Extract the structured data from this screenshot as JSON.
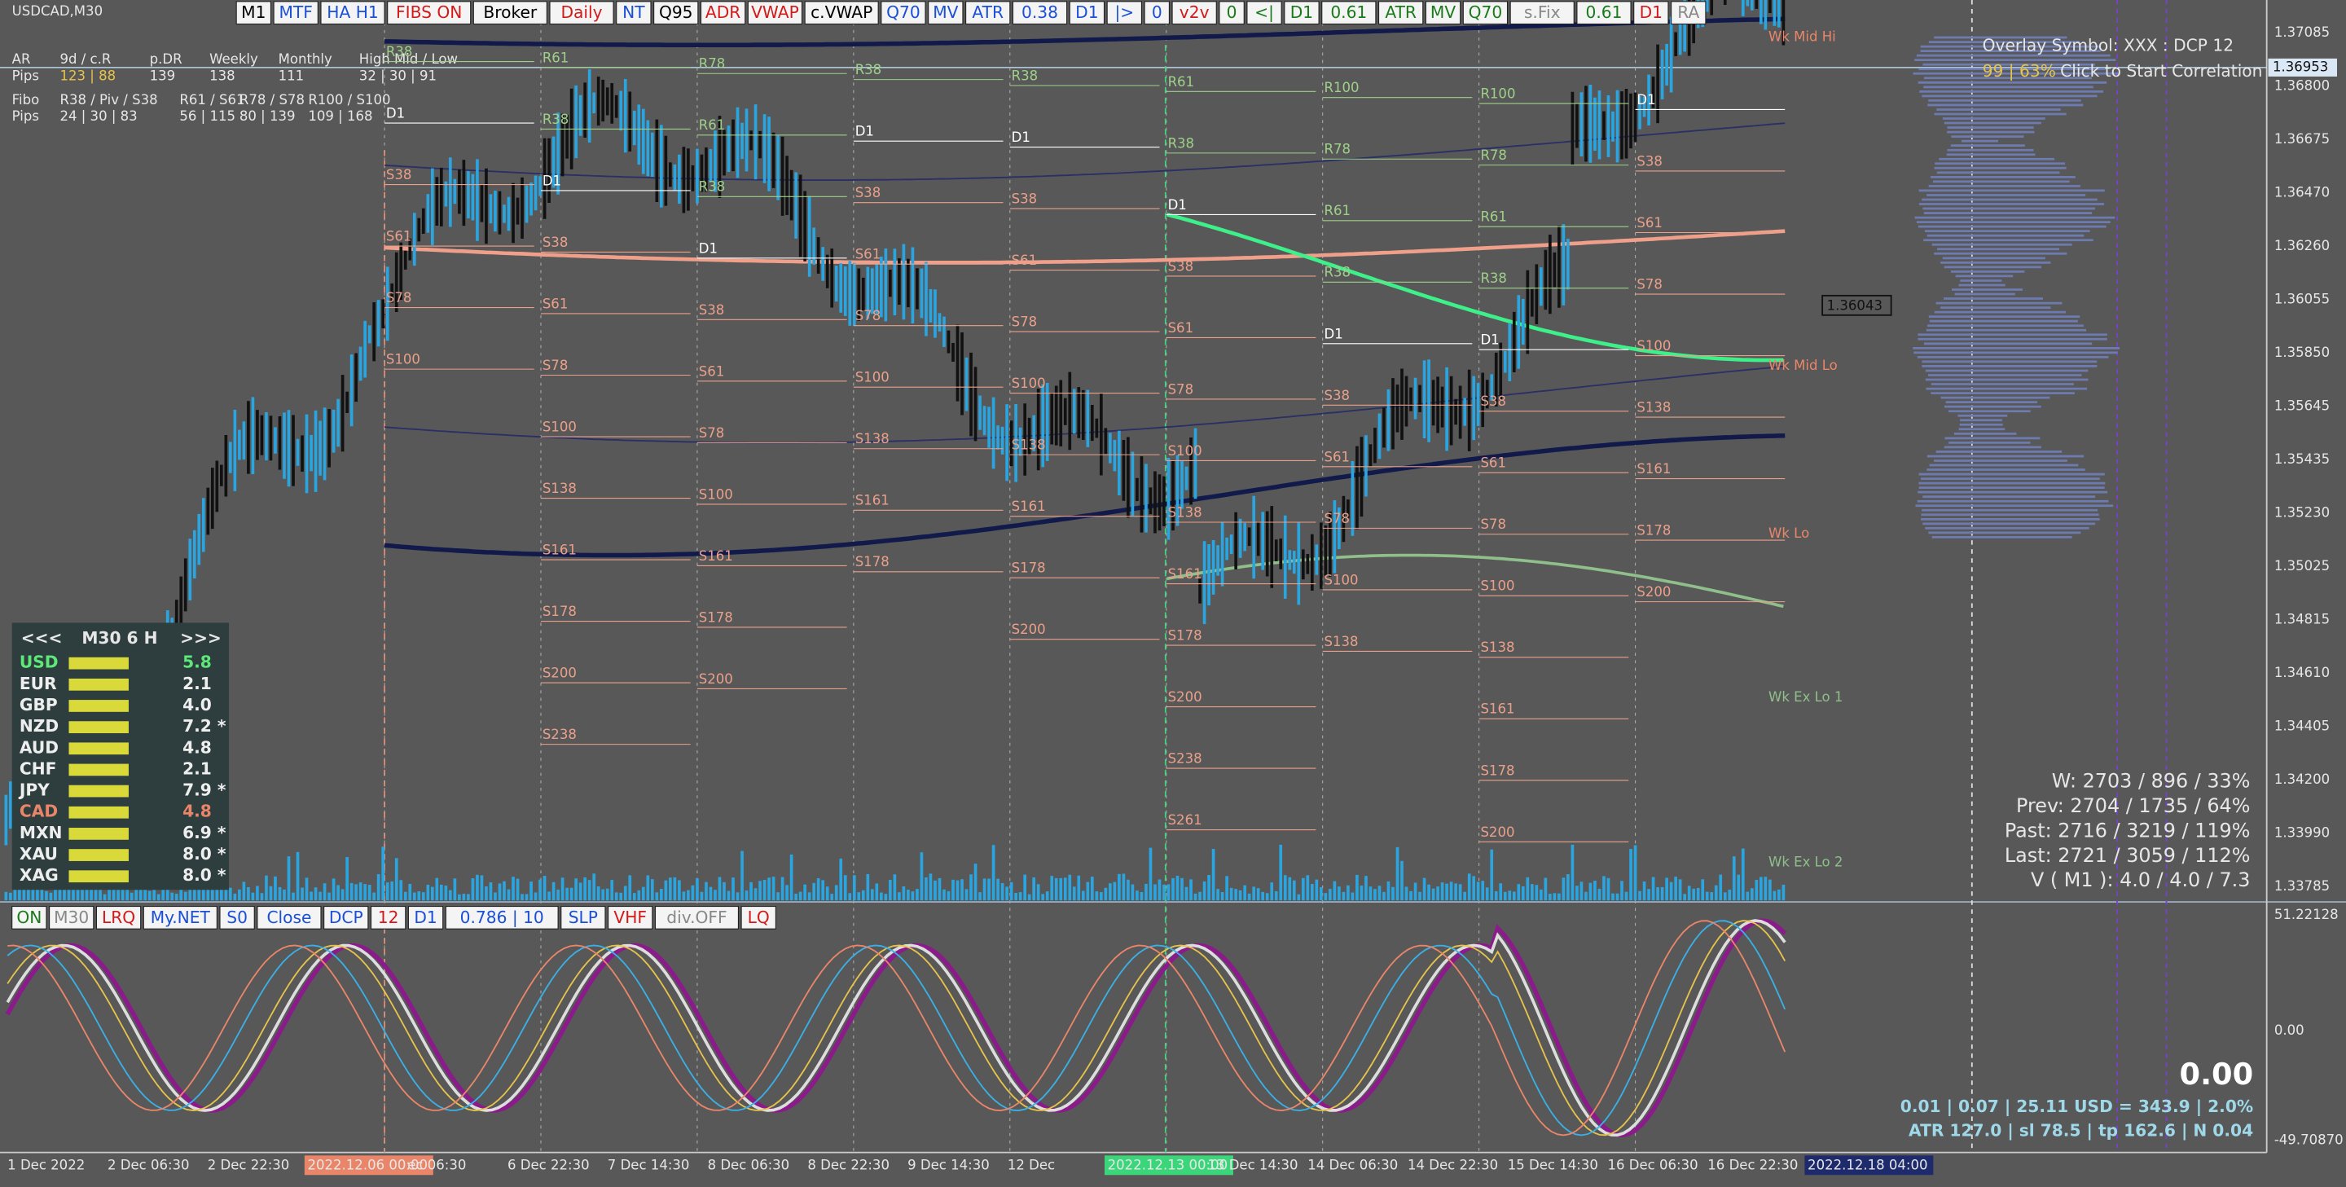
{
  "window_title": "USDCAD,M30",
  "top_toolbar": [
    {
      "label": "M1",
      "color": "#000000"
    },
    {
      "label": "MTF",
      "color": "#1a4fd6"
    },
    {
      "label": "HA H1",
      "color": "#1a4fd6"
    },
    {
      "label": "FIBS ON",
      "color": "#d21a1a"
    },
    {
      "label": "Broker",
      "color": "#000000"
    },
    {
      "label": "Daily",
      "color": "#d21a1a"
    },
    {
      "label": "NT",
      "color": "#1a4fd6"
    },
    {
      "label": "Q95",
      "color": "#000000"
    },
    {
      "label": "ADR",
      "color": "#d21a1a"
    },
    {
      "label": "VWAP",
      "color": "#d21a1a"
    },
    {
      "label": "c.VWAP",
      "color": "#000000"
    },
    {
      "label": "Q70",
      "color": "#1a4fd6"
    },
    {
      "label": "MV",
      "color": "#1a4fd6"
    },
    {
      "label": "ATR",
      "color": "#1a4fd6"
    },
    {
      "label": "0.38",
      "color": "#1a4fd6"
    },
    {
      "label": "D1",
      "color": "#1a4fd6"
    },
    {
      "label": "|>",
      "color": "#1a4fd6"
    },
    {
      "label": "0",
      "color": "#1a4fd6"
    },
    {
      "label": "v2v",
      "color": "#d21a1a"
    },
    {
      "label": "0",
      "color": "#1a7a1a"
    },
    {
      "label": "<|",
      "color": "#1a7a1a"
    },
    {
      "label": "D1",
      "color": "#1a7a1a"
    },
    {
      "label": "0.61",
      "color": "#1a7a1a"
    },
    {
      "label": "ATR",
      "color": "#1a7a1a"
    },
    {
      "label": "MV",
      "color": "#1a7a1a"
    },
    {
      "label": "Q70",
      "color": "#1a7a1a"
    },
    {
      "label": "s.Fix",
      "color": "#888888"
    },
    {
      "label": "0.61",
      "color": "#1a7a1a"
    },
    {
      "label": "D1",
      "color": "#d21a1a"
    },
    {
      "label": "RA",
      "color": "#888888"
    }
  ],
  "info_panel": [
    [
      "AR",
      "9d / c.R",
      "p.DR",
      "Weekly",
      "Monthly",
      "High Mid / Low"
    ],
    [
      "Pips",
      "123 | 88",
      "139",
      "138",
      "111",
      "32 | 30 | 91"
    ],
    [
      "Fibo",
      "R38 / Piv / S38",
      "R61 / S61",
      "R78 / S78",
      "R100 / S100"
    ],
    [
      "Pips",
      "24 | 30 | 83",
      "56 | 115",
      "80 | 139",
      "109 | 168"
    ]
  ],
  "price_axis": [
    "1.37085",
    "1.36800",
    "1.36675",
    "1.36470",
    "1.36260",
    "1.36055",
    "1.35850",
    "1.35645",
    "1.35435",
    "1.35230",
    "1.35025",
    "1.34815",
    "1.34610",
    "1.34405",
    "1.34200",
    "1.33990",
    "1.33785"
  ],
  "current_price": "1.36953",
  "price_tag": "1.36043",
  "oscillator_axis": [
    "51.22128",
    "0.00",
    "-49.70870"
  ],
  "time_axis": [
    {
      "label": "1 Dec 2022"
    },
    {
      "label": "2 Dec 06:30"
    },
    {
      "label": "2 Dec 22:30"
    },
    {
      "label": "2022.12.06 00:00",
      "highlight": "#e9866a"
    },
    {
      "label": "ec 06:30"
    },
    {
      "label": "6 Dec 22:30"
    },
    {
      "label": "7 Dec 14:30"
    },
    {
      "label": "8 Dec 06:30"
    },
    {
      "label": "8 Dec 22:30"
    },
    {
      "label": "9 Dec 14:30"
    },
    {
      "label": "12 Dec"
    },
    {
      "label": "2022.12.13 00:00",
      "highlight": "#3bd67a"
    },
    {
      "label": "13 Dec 14:30"
    },
    {
      "label": "14 Dec 06:30"
    },
    {
      "label": "14 Dec 22:30"
    },
    {
      "label": "15 Dec 14:30"
    },
    {
      "label": "16 Dec 06:30"
    },
    {
      "label": "16 Dec 22:30"
    },
    {
      "label": "2022.12.18 04:00",
      "highlight": "#1d2a6b"
    }
  ],
  "overlay": {
    "symbol": "Overlay Symbol: XXX : DCP 12",
    "corr": "99 | 63%",
    "action": "Click to Start Correlation"
  },
  "weekly_levels": [
    "Wk Mid Hi",
    "Wk Mid Lo",
    "Wk Lo",
    "Wk Ex Lo 1",
    "Wk Ex Lo 2"
  ],
  "fib_columns": [
    [
      "R38",
      "D1",
      "S38",
      "S61",
      "S78",
      "S100"
    ],
    [
      "R61",
      "R38",
      "D1",
      "S38",
      "S61",
      "S78",
      "S100",
      "S138",
      "S161",
      "S178",
      "S200",
      "S238"
    ],
    [
      "R78",
      "R61",
      "R38",
      "D1",
      "S38",
      "S61",
      "S78",
      "S100",
      "S161",
      "S178",
      "S200"
    ],
    [
      "R38",
      "D1",
      "S38",
      "S61",
      "S78",
      "S100",
      "S138",
      "S161",
      "S178"
    ],
    [
      "R38",
      "D1",
      "S38",
      "S61",
      "S78",
      "S100",
      "S138",
      "S161",
      "S178",
      "S200"
    ],
    [
      "R61",
      "R38",
      "D1",
      "S38",
      "S61",
      "S78",
      "S100",
      "S138",
      "S161",
      "S178",
      "S200",
      "S238",
      "S261"
    ],
    [
      "R100",
      "R78",
      "R61",
      "R38",
      "D1",
      "S38",
      "S61",
      "S78",
      "S100",
      "S138"
    ],
    [
      "R100",
      "R78",
      "R61",
      "R38",
      "D1",
      "S38",
      "S61",
      "S78",
      "S100",
      "S138",
      "S161",
      "S178",
      "S200"
    ],
    [
      "D1",
      "S38",
      "S61",
      "S78",
      "S100",
      "S138",
      "S161",
      "S178",
      "S200"
    ]
  ],
  "strength_panel": {
    "header": [
      "<<<",
      "M30 6 H",
      ">>>"
    ],
    "rows": [
      [
        "USD",
        "5.8"
      ],
      [
        "EUR",
        "2.1"
      ],
      [
        "GBP",
        "4.0"
      ],
      [
        "NZD",
        "7.2 *"
      ],
      [
        "AUD",
        "4.8"
      ],
      [
        "CHF",
        "2.1"
      ],
      [
        "JPY",
        "7.9 *"
      ],
      [
        "CAD",
        "4.8"
      ],
      [
        "MXN",
        "6.9 *"
      ],
      [
        "XAU",
        "8.0 *"
      ],
      [
        "XAG",
        "8.0 *"
      ]
    ]
  },
  "stats": [
    "W: 2703 / 896 / 33%",
    "Prev: 2704 / 1735 / 64%",
    "Past: 2716 / 3219 / 119%",
    "Last: 2721 / 3059 / 112%",
    "V ( M1 ): 4.0 / 4.0 / 7.3"
  ],
  "bottom_toolbar": [
    {
      "label": "ON",
      "color": "#1a7a1a"
    },
    {
      "label": "M30",
      "color": "#888888"
    },
    {
      "label": "LRQ",
      "color": "#d21a1a"
    },
    {
      "label": "My.NET",
      "color": "#1a4fd6"
    },
    {
      "label": "S0",
      "color": "#1a4fd6"
    },
    {
      "label": "Close",
      "color": "#1a4fd6"
    },
    {
      "label": "DCP",
      "color": "#1a4fd6"
    },
    {
      "label": "12",
      "color": "#d21a1a"
    },
    {
      "label": "D1",
      "color": "#1a4fd6"
    },
    {
      "label": "0.786 | 10",
      "color": "#1a4fd6"
    },
    {
      "label": "SLP",
      "color": "#1a4fd6"
    },
    {
      "label": "VHF",
      "color": "#d21a1a"
    },
    {
      "label": "div.OFF",
      "color": "#888888"
    },
    {
      "label": "LQ",
      "color": "#d21a1a"
    }
  ],
  "trade_panel": {
    "big": "0.00",
    "line1": "0.01  |  0.07  |  25.11 USD = 343.9  |  2.0%",
    "line2": "ATR 127.0  |  sl 78.5  |  tp 162.6  |  N 0.04"
  }
}
